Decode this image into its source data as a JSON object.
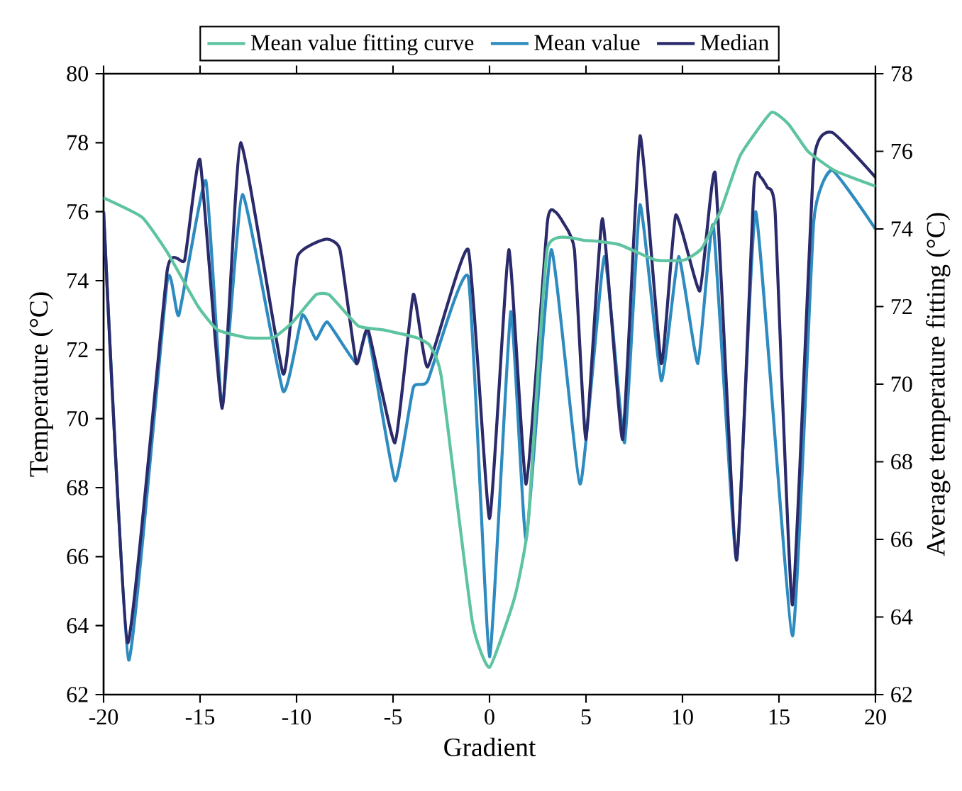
{
  "chart_data": {
    "type": "line",
    "xlabel": "Gradient",
    "ylabel": "Temperature (°C)",
    "y2label": "Average temperature fitting (°C)",
    "xlim": [
      -20,
      20
    ],
    "xticks": [
      -20,
      -15,
      -10,
      -5,
      0,
      5,
      10,
      15,
      20
    ],
    "ylim": [
      62,
      80
    ],
    "yticks": [
      62,
      64,
      66,
      68,
      70,
      72,
      74,
      76,
      78,
      80
    ],
    "y2lim": [
      62,
      78
    ],
    "y2ticks": [
      62,
      64,
      66,
      68,
      70,
      72,
      74,
      76,
      78
    ],
    "legend": "top",
    "grid": false,
    "marker": "none",
    "line_style": "solid",
    "series": [
      {
        "name": "Mean value fitting curve",
        "color": "#5ec4a0",
        "axis": "y2",
        "x": [
          -20,
          -18,
          -16.7,
          -15.1,
          -14.1,
          -12.6,
          -11.2,
          -10.2,
          -9,
          -8.3,
          -6.8,
          -5.5,
          -3.8,
          -3.1,
          -2.5,
          -0.9,
          0,
          1.3,
          2,
          3,
          5,
          6.7,
          8.6,
          10.1,
          11,
          12,
          13,
          14.6,
          15.5,
          16.5,
          17.9,
          20
        ],
        "values": [
          74.8,
          74.3,
          73.4,
          72,
          71.4,
          71.2,
          71.2,
          71.6,
          72.3,
          72.3,
          71.5,
          71.4,
          71.2,
          71,
          70.2,
          63.9,
          62.7,
          64.5,
          66.4,
          73.5,
          73.7,
          73.6,
          73.2,
          73.2,
          73.5,
          74.5,
          75.9,
          77,
          76.7,
          76,
          75.5,
          75.1
        ]
      },
      {
        "name": "Mean value",
        "color": "#2e8bc0",
        "axis": "y",
        "x": [
          -20,
          -18.7,
          -16.7,
          -16.1,
          -14.7,
          -13.85,
          -12.8,
          -10.7,
          -9.7,
          -9,
          -8.4,
          -6.9,
          -6.3,
          -4.9,
          -3.95,
          -3.2,
          -1.1,
          0,
          1.1,
          1.9,
          3.2,
          4.7,
          5.95,
          7,
          7.8,
          8.9,
          9.8,
          10.8,
          11.6,
          12.8,
          13.8,
          15.7,
          16.8,
          17.75,
          20
        ],
        "values": [
          76,
          63,
          74,
          73,
          76.9,
          70.4,
          76.5,
          70.8,
          73,
          72.3,
          72.8,
          71.6,
          72.5,
          68.2,
          70.9,
          71.1,
          74.1,
          63.1,
          73.1,
          66.5,
          74.9,
          68.1,
          74.7,
          69.3,
          76.2,
          71.1,
          74.7,
          71.6,
          75.6,
          65.9,
          76,
          63.7,
          75.7,
          77.2,
          75.5
        ]
      },
      {
        "name": "Median",
        "color": "#2b2a6b",
        "axis": "y",
        "x": [
          -20,
          -18.75,
          -16.7,
          -15.8,
          -15,
          -13.85,
          -12.9,
          -10.7,
          -9.95,
          -8.5,
          -7.75,
          -6.9,
          -6.3,
          -4.9,
          -3.95,
          -3.2,
          -1.1,
          0,
          1,
          1.9,
          3,
          3.4,
          3.8,
          4.4,
          5,
          5.85,
          6.9,
          7.8,
          8.9,
          9.65,
          10.9,
          11.7,
          12.8,
          13.7,
          14.05,
          14.4,
          14.8,
          15.7,
          16.8,
          17.75,
          20
        ],
        "values": [
          76,
          63.5,
          74.3,
          74.6,
          77.5,
          70.3,
          78,
          71.3,
          74.7,
          75.2,
          74.9,
          71.6,
          72.6,
          69.3,
          73.6,
          71.5,
          74.9,
          67.1,
          74.9,
          68.1,
          75.7,
          76,
          75.7,
          74.9,
          69.4,
          75.8,
          69.4,
          78.2,
          71.6,
          75.9,
          73.7,
          77.1,
          65.9,
          76.7,
          77,
          76.7,
          76,
          64.6,
          77.4,
          78.3,
          77
        ]
      }
    ]
  }
}
